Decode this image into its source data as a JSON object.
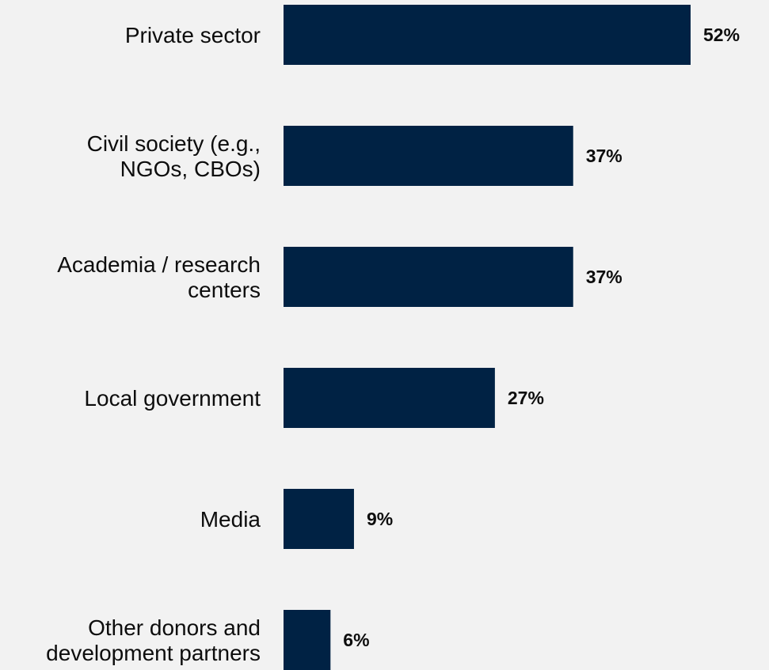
{
  "chart_data": {
    "type": "bar",
    "orientation": "horizontal",
    "categories": [
      "Private sector",
      "Civil society (e.g., NGOs, CBOs)",
      "Academia / research centers",
      "Local government",
      "Media",
      "Other donors and development partners"
    ],
    "category_lines": [
      [
        "Private sector"
      ],
      [
        "Civil society (e.g.,",
        "NGOs, CBOs)"
      ],
      [
        "Academia / research",
        "centers"
      ],
      [
        "Local government"
      ],
      [
        "Media"
      ],
      [
        "Other donors and",
        "development partners"
      ]
    ],
    "values": [
      52,
      37,
      37,
      27,
      9,
      6
    ],
    "value_labels": [
      "52%",
      "37%",
      "37%",
      "27%",
      "9%",
      "6%"
    ],
    "unit": "%",
    "bar_color": "#002244",
    "background_color": "#f2f2f2",
    "xlim": [
      0,
      52
    ],
    "grid": false,
    "legend": "none",
    "title": "",
    "xlabel": "",
    "ylabel": ""
  }
}
